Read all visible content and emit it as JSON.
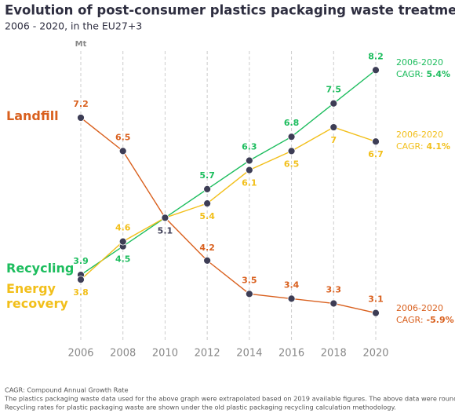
{
  "chart_data": {
    "type": "line",
    "title": "Evolution of post-consumer plastics packaging waste treatment (in Mt)",
    "subtitle": "2006 - 2020, in the EU27+3",
    "y_axis_label": "Mt",
    "x": [
      2006,
      2008,
      2010,
      2012,
      2014,
      2016,
      2018,
      2020
    ],
    "xlim": [
      2006,
      2020
    ],
    "xticks": [
      2006,
      2008,
      2010,
      2012,
      2014,
      2016,
      2018,
      2020
    ],
    "ylim": [
      2.5,
      8.6
    ],
    "grid": true,
    "marker_color": "#3d3d55",
    "series": [
      {
        "name": "Landfill",
        "color": "#d9601e",
        "values": [
          7.2,
          6.5,
          5.1,
          4.2,
          3.5,
          3.4,
          3.3,
          3.1
        ],
        "annotation": {
          "period": "2006-2020",
          "label": "CAGR:",
          "value": "-5.9%"
        }
      },
      {
        "name": "Recycling",
        "color": "#1dbd5e",
        "values": [
          3.9,
          4.5,
          5.1,
          5.7,
          6.3,
          6.8,
          7.5,
          8.2
        ],
        "annotation": {
          "period": "2006-2020",
          "label": "CAGR:",
          "value": "5.4%"
        }
      },
      {
        "name": "Energy recovery",
        "color": "#f2bf1a",
        "values": [
          3.8,
          4.6,
          5.1,
          5.4,
          6.1,
          6.5,
          7.0,
          6.7
        ],
        "annotation": {
          "period": "2006-2020",
          "label": "CAGR:",
          "value": "4.1%"
        }
      }
    ],
    "footnotes": [
      "CAGR: Compound Annual Growth Rate",
      "The plastics packaging waste data used for the above graph were extrapolated based on 2019 available figures. The above data were rounded.",
      "Recycling rates for plastic packaging waste are shown under the old plastic packaging recycling calculation methodology."
    ]
  }
}
